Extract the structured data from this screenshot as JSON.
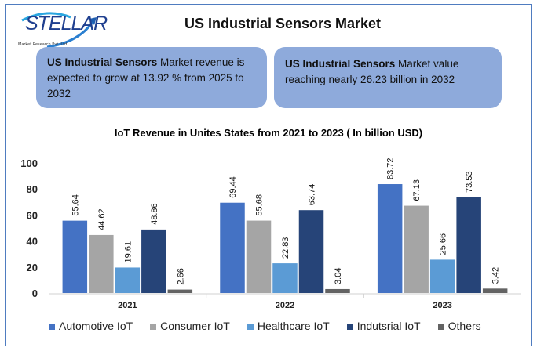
{
  "logo": {
    "name": "STELLAR",
    "subtitle": "Market Research Pvt. Ltd."
  },
  "header": {
    "title": "US Industrial Sensors Market"
  },
  "boxes": [
    {
      "bold": "US Industrial Sensors",
      "text": " Market revenue is expected to grow at 13.92 % from 2025 to 2032"
    },
    {
      "bold": "US Industrial Sensors",
      "text": " Market value reaching nearly 26.23 billion in 2032"
    }
  ],
  "chart_data": {
    "type": "bar",
    "title": "IoT Revenue in Unites States from 2021 to 2023 ( In billion USD)",
    "categories": [
      "2021",
      "2022",
      "2023"
    ],
    "ylim": [
      0,
      100
    ],
    "yticks": [
      0,
      20,
      40,
      60,
      80,
      100
    ],
    "grid": false,
    "legend": "bottom",
    "series": [
      {
        "name": "Automotive IoT",
        "color": "#4472c4",
        "values": [
          55.64,
          69.44,
          83.72
        ]
      },
      {
        "name": "Consumer IoT",
        "color": "#a5a5a5",
        "values": [
          44.62,
          55.68,
          67.13
        ]
      },
      {
        "name": "Healthcare IoT",
        "color": "#5b9bd5",
        "values": [
          19.61,
          22.83,
          25.66
        ]
      },
      {
        "name": "Indutsrial IoT",
        "color": "#264478",
        "values": [
          48.86,
          63.74,
          73.53
        ]
      },
      {
        "name": "Others",
        "color": "#636363",
        "values": [
          2.66,
          3.04,
          3.42
        ]
      }
    ]
  }
}
